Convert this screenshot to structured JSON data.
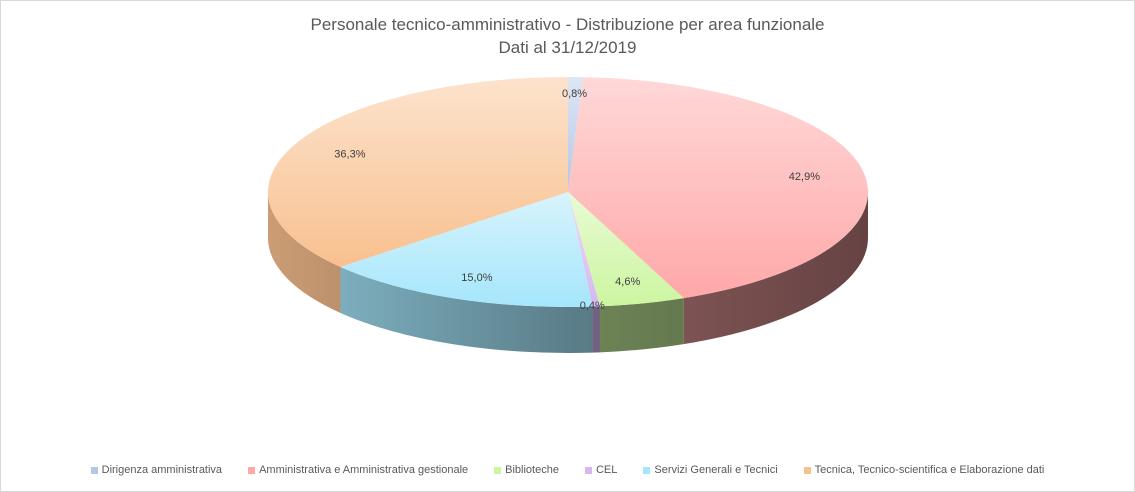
{
  "chart_data": {
    "type": "pie",
    "title": "Personale tecnico-amministrativo  - Distribuzione per area funzionale",
    "subtitle": "Dati al 31/12/2019",
    "legend_position": "bottom",
    "slices": [
      {
        "name": "Dirigenza amministrativa",
        "value": 0.8,
        "label": "0,8%",
        "color": "#b4c7e7"
      },
      {
        "name": "Amministrativa e Amministrativa gestionale",
        "value": 42.9,
        "label": "42,9%",
        "color": "#ffa8a8"
      },
      {
        "name": "Biblioteche",
        "value": 4.6,
        "label": "4,6%",
        "color": "#ccf5a0"
      },
      {
        "name": "CEL",
        "value": 0.4,
        "label": "0,4%",
        "color": "#d5b8f0"
      },
      {
        "name": "Servizi Generali e Tecnici",
        "value": 15.0,
        "label": "15,0%",
        "color": "#a6e6fb"
      },
      {
        "name": "Tecnica, Tecnico-scientifica e Elaborazione dati",
        "value": 36.3,
        "label": "36,3%",
        "color": "#f9c08f"
      }
    ]
  }
}
